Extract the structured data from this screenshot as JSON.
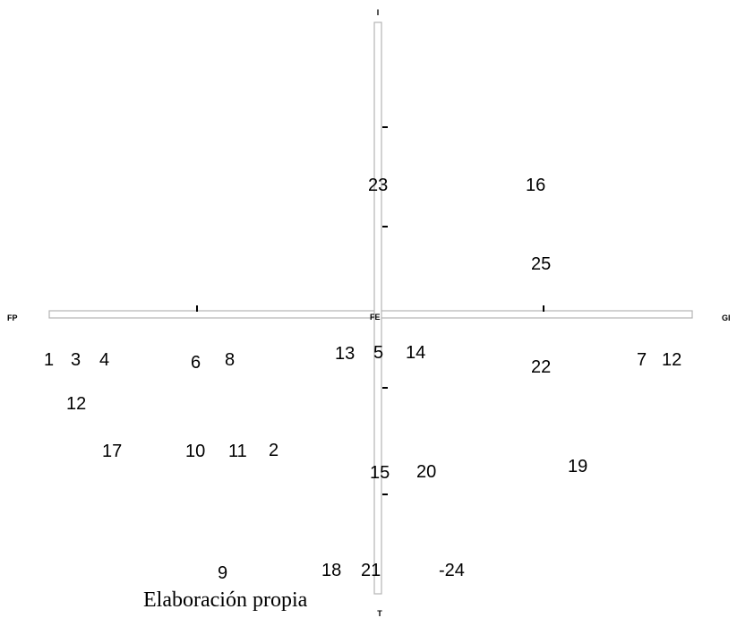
{
  "axes": {
    "top": "I",
    "bottom": "T",
    "left": "FP",
    "right": "GI",
    "center": "FE"
  },
  "source": "Elaboración propia",
  "points": [
    {
      "label": "1"
    },
    {
      "label": "3"
    },
    {
      "label": "4"
    },
    {
      "label": "12"
    },
    {
      "label": "17"
    },
    {
      "label": "6"
    },
    {
      "label": "8"
    },
    {
      "label": "10"
    },
    {
      "label": "11"
    },
    {
      "label": "2"
    },
    {
      "label": "9"
    },
    {
      "label": "13"
    },
    {
      "label": "5"
    },
    {
      "label": "14"
    },
    {
      "label": "23"
    },
    {
      "label": "16"
    },
    {
      "label": "25"
    },
    {
      "label": "22"
    },
    {
      "label": "7"
    },
    {
      "label": "12"
    },
    {
      "label": "15"
    },
    {
      "label": "20"
    },
    {
      "label": "19"
    },
    {
      "label": "18"
    },
    {
      "label": "21"
    },
    {
      "label": "-24"
    }
  ]
}
